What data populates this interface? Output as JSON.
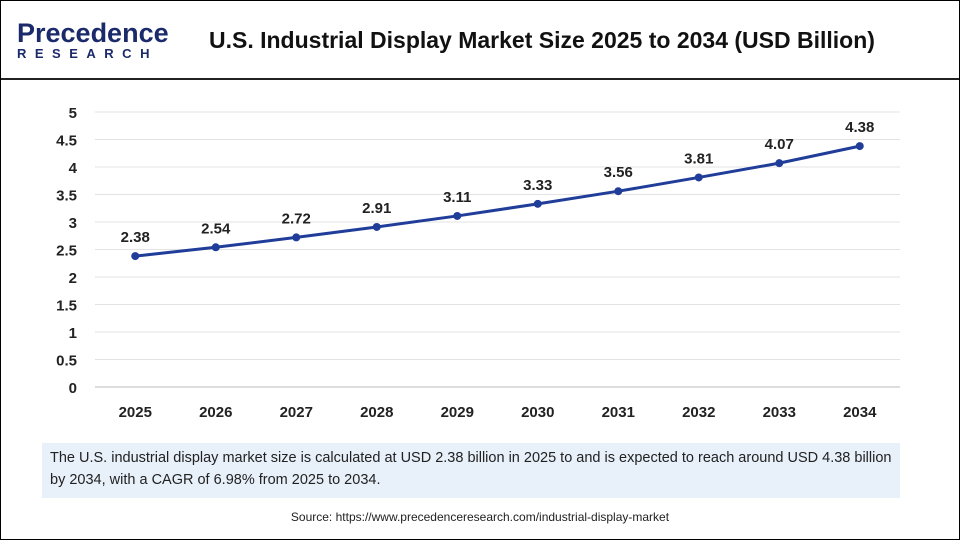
{
  "logo": {
    "line1": "Precedence",
    "line2": "RESEARCH"
  },
  "title": "U.S. Industrial Display Market Size 2025 to 2034 (USD Billion)",
  "chart_data": {
    "type": "line",
    "title": "U.S. Industrial Display Market Size 2025 to 2034 (USD Billion)",
    "categories": [
      "2025",
      "2026",
      "2027",
      "2028",
      "2029",
      "2030",
      "2031",
      "2032",
      "2033",
      "2034"
    ],
    "values": [
      2.38,
      2.54,
      2.72,
      2.91,
      3.11,
      3.33,
      3.56,
      3.81,
      4.07,
      4.38
    ],
    "data_labels": [
      "2.38",
      "2.54",
      "2.72",
      "2.91",
      "3.11",
      "3.33",
      "3.56",
      "3.81",
      "4.07",
      "4.38"
    ],
    "ylim": [
      0,
      5
    ],
    "yticks": [
      "0",
      "0.5",
      "1",
      "1.5",
      "2",
      "2.5",
      "3",
      "3.5",
      "4",
      "4.5",
      "5"
    ],
    "grid": true,
    "line_color": "#1f3d99"
  },
  "summary": "The U.S. industrial display market size is calculated at USD 2.38 billion in 2025 to and is expected to reach around USD 4.38 billion by 2034, with a CAGR of 6.98% from 2025 to 2034.",
  "source": "Source: https://www.precedenceresearch.com/industrial-display-market"
}
